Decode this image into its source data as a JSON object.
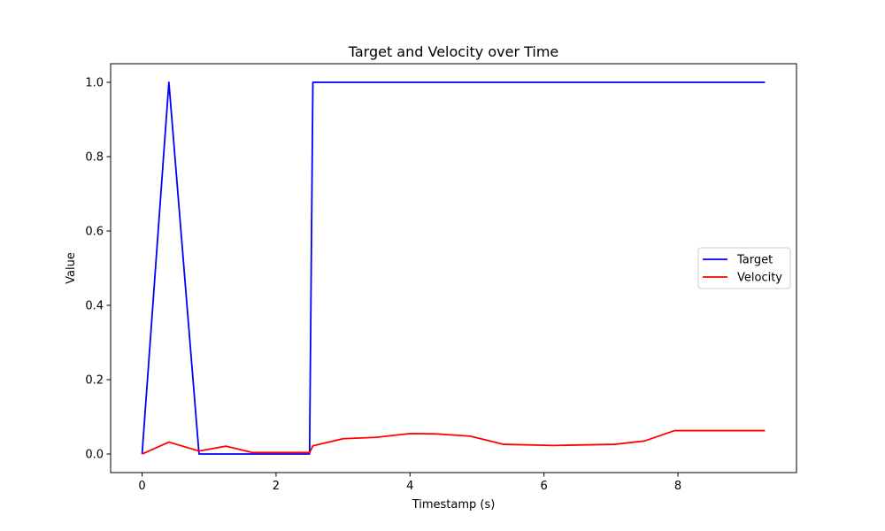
{
  "chart_data": {
    "type": "line",
    "title": "Target and Velocity over Time",
    "xlabel": "Timestamp (s)",
    "ylabel": "Value",
    "xlim": [
      -0.47,
      9.77
    ],
    "ylim": [
      -0.05,
      1.05
    ],
    "xticks": [
      0,
      2,
      4,
      6,
      8
    ],
    "yticks": [
      0.0,
      0.2,
      0.4,
      0.6,
      0.8,
      1.0
    ],
    "xtick_labels": [
      "0",
      "2",
      "4",
      "6",
      "8"
    ],
    "ytick_labels": [
      "0.0",
      "0.2",
      "0.4",
      "0.6",
      "0.8",
      "1.0"
    ],
    "grid": false,
    "legend_position": "center-right",
    "series": [
      {
        "name": "Target",
        "color": "#0000ff",
        "x": [
          0,
          0.4,
          0.85,
          2.5,
          2.55,
          9.3
        ],
        "y": [
          0,
          1.0,
          0.0,
          0.0,
          1.0,
          1.0
        ]
      },
      {
        "name": "Velocity",
        "color": "#ff0000",
        "x": [
          0,
          0.4,
          0.85,
          1.25,
          1.65,
          2.0,
          2.5,
          2.55,
          3.0,
          3.5,
          4.0,
          4.4,
          4.9,
          5.4,
          6.15,
          7.05,
          7.5,
          7.95,
          9.3
        ],
        "y": [
          0.0,
          0.032,
          0.008,
          0.021,
          0.004,
          0.004,
          0.004,
          0.022,
          0.041,
          0.045,
          0.055,
          0.054,
          0.048,
          0.026,
          0.023,
          0.026,
          0.035,
          0.063,
          0.063
        ]
      }
    ]
  }
}
